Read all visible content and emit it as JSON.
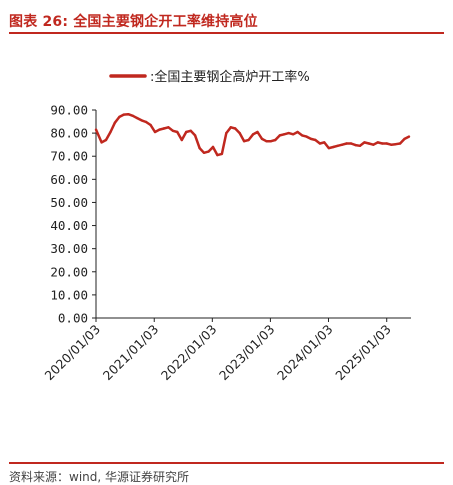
{
  "header": {
    "title": "图表 26: 全国主要钢企开工率维持高位"
  },
  "footer": {
    "source": "资料来源：wind, 华源证券研究所"
  },
  "colors": {
    "accent": "#c0281f",
    "series": "#c0281f"
  },
  "chart_data": {
    "type": "line",
    "title": "",
    "xlabel": "",
    "ylabel": "",
    "ylim": [
      0,
      90
    ],
    "yticks": [
      "0.00",
      "10.00",
      "20.00",
      "30.00",
      "40.00",
      "50.00",
      "60.00",
      "70.00",
      "80.00",
      "90.00"
    ],
    "xticks": [
      "2020/01/03",
      "2021/01/03",
      "2022/01/03",
      "2023/01/03",
      "2024/01/03",
      "2025/01/03"
    ],
    "legend": "top-center",
    "grid": false,
    "series": [
      {
        "name": ":全国主要钢企高炉开工率%",
        "x": [
          "2020/01/03",
          "2020/02/07",
          "2020/03/06",
          "2020/04/03",
          "2020/05/01",
          "2020/05/29",
          "2020/06/26",
          "2020/07/24",
          "2020/08/21",
          "2020/09/18",
          "2020/10/16",
          "2020/11/13",
          "2020/12/11",
          "2021/01/08",
          "2021/02/05",
          "2021/03/05",
          "2021/04/02",
          "2021/04/30",
          "2021/05/28",
          "2021/06/25",
          "2021/07/23",
          "2021/08/20",
          "2021/09/17",
          "2021/10/15",
          "2021/11/12",
          "2021/12/10",
          "2022/01/07",
          "2022/02/04",
          "2022/03/04",
          "2022/04/01",
          "2022/04/29",
          "2022/05/27",
          "2022/06/24",
          "2022/07/22",
          "2022/08/19",
          "2022/09/16",
          "2022/10/14",
          "2022/11/11",
          "2022/12/09",
          "2023/01/06",
          "2023/02/03",
          "2023/03/03",
          "2023/03/31",
          "2023/04/28",
          "2023/05/26",
          "2023/06/23",
          "2023/07/21",
          "2023/08/18",
          "2023/09/15",
          "2023/10/13",
          "2023/11/10",
          "2023/12/08",
          "2024/01/05",
          "2024/02/02",
          "2024/03/01",
          "2024/03/29",
          "2024/04/26",
          "2024/05/24",
          "2024/06/21",
          "2024/07/19",
          "2024/08/16",
          "2024/09/13",
          "2024/10/11",
          "2024/11/08",
          "2024/12/06",
          "2025/01/03",
          "2025/01/31",
          "2025/02/28",
          "2025/03/28",
          "2025/04/25",
          "2025/05/23"
        ],
        "values": [
          81.5,
          76.0,
          77.0,
          80.5,
          84.5,
          87.0,
          88.0,
          88.2,
          87.5,
          86.5,
          85.5,
          84.8,
          83.5,
          80.5,
          81.5,
          82.0,
          82.5,
          81.0,
          80.5,
          77.0,
          80.5,
          81.0,
          79.0,
          73.5,
          71.5,
          72.0,
          74.0,
          70.5,
          71.0,
          80.0,
          82.5,
          82.0,
          80.0,
          76.5,
          77.0,
          79.5,
          80.5,
          77.5,
          76.5,
          76.5,
          77.0,
          79.0,
          79.5,
          80.0,
          79.5,
          80.5,
          79.0,
          78.5,
          77.5,
          77.0,
          75.5,
          76.0,
          73.5,
          74.0,
          74.5,
          75.0,
          75.5,
          75.5,
          74.8,
          74.5,
          76.0,
          75.5,
          75.0,
          76.0,
          75.5,
          75.5,
          75.0,
          75.2,
          75.5,
          77.5,
          78.5
        ]
      }
    ]
  }
}
